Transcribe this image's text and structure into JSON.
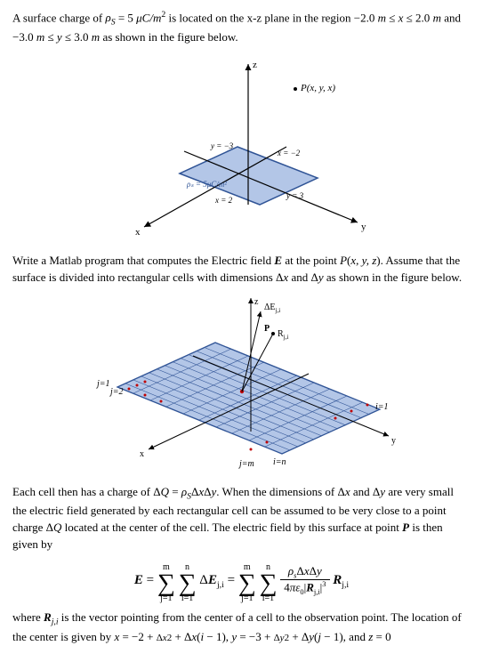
{
  "problem": {
    "intro": "A surface charge of ρ_S = 5 μC/m² is located on the x-z plane in the region −2.0 m ≤ x ≤ 2.0 m and −3.0 m ≤ y ≤ 3.0 m as shown in the figure below.",
    "intro_html": "A surface charge of <span class='ital'>ρ<span class='sub'>S</span></span> = 5 <span class='ital'>μC/m</span><span class='sup'>2</span> is located on the x-z plane in the region −2.0 <span class='ital'>m</span> ≤ <span class='ital'>x</span> ≤ 2.0 <span class='ital'>m</span> and −3.0 <span class='ital'>m</span> ≤ <span class='ital'>y</span> ≤ 3.0 <span class='ital'>m</span> as shown in the figure below."
  },
  "figure1": {
    "point_label": "P(x, y, x)",
    "axis_z": "z",
    "axis_x": "x",
    "axis_y": "y",
    "y_neg3": "y = −3",
    "x_neg2": "x = −2",
    "rho_label": "ρₛ = 5μC/m²",
    "x_2": "x = 2",
    "y_3": "y = 3",
    "plane_fill": "#b3c6e7",
    "plane_stroke": "#305496",
    "axis_color": "#000000"
  },
  "task": {
    "text_html": "Write a Matlab program that computes the Electric field <span class='bold ital'>E</span> at the point <span class='ital'>P</span>(<span class='ital'>x, y, z</span>). Assume that the surface is divided into rectangular cells with dimensions Δ<span class='ital'>x</span> and Δ<span class='ital'>y</span> as shown in the figure below."
  },
  "figure2": {
    "dE_label": "ΔE_j,i",
    "P_label": "P",
    "R_label": "R_j,i",
    "axis_z": "z",
    "axis_x": "x",
    "axis_y": "y",
    "j1": "j=1",
    "j2": "j=2",
    "jm": "j=m",
    "i1": "i=1",
    "in": "i=n",
    "plane_fill": "#b3c6e7",
    "grid_color": "#305496",
    "dot_color": "#c00000"
  },
  "explain": {
    "text_html": "Each cell then has a charge of Δ<span class='ital'>Q</span> = <span class='ital'>ρ<span class='sub'>S</span></span>Δ<span class='ital'>x</span>Δ<span class='ital'>y</span>. When the dimensions of Δ<span class='ital'>x</span> and Δ<span class='ital'>y</span> are very small the electric field generated by each rectangular cell can be assumed to be very close to a point charge Δ<span class='ital'>Q</span> located at the center of the cell. The electric field by this surface at point <span class='bold ital'>P</span> is then given by"
  },
  "equation": {
    "m": "m",
    "n": "n",
    "lhs": "E",
    "dE": "ΔE_j,i",
    "num": "ρ_s ΔxΔy",
    "den": "4πε₀|R_j,i|³",
    "R": "R_j,i"
  },
  "closing": {
    "text_html": "where <span class='bold ital'>R</span><span class='sub ital'>j,i</span> is the vector pointing from the center of a cell to the observation point. The location of the center is given by <span class='ital'>x</span> = −2 + <span class='frac' style='font-size:11px'><span class='num'>Δ<span class=\"ital\">x</span></span><span class='den'>2</span></span> + Δ<span class='ital'>x</span>(<span class='ital'>i</span> − 1), <span class='ital'>y</span> = −3 + <span class='frac' style='font-size:11px'><span class='num'>Δ<span class=\"ital\">y</span></span><span class='den'>2</span></span> + Δ<span class='ital'>y</span>(<span class='ital'>j</span> − 1), and <span class='ital'>z</span> = 0"
  }
}
